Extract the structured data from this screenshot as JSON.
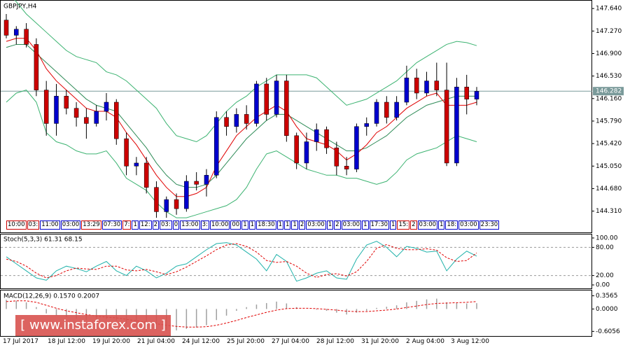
{
  "chart_data": {
    "type": "candlestick",
    "title": "GBPJPY,H4",
    "up_color": "#0000cd",
    "down_color": "#cc0000",
    "band_color": "#3cb371",
    "ma_color": "#e00000",
    "mid_color": "#2e8b57",
    "open": [
      147.45,
      147.2,
      147.3,
      147.05,
      146.3,
      145.75,
      146.2,
      146.0,
      145.85,
      145.75,
      145.95,
      146.1,
      145.5,
      145.05,
      145.1,
      144.7,
      144.3,
      144.5,
      144.35,
      144.8,
      144.75,
      144.9,
      145.85,
      145.7,
      145.9,
      145.75,
      146.4,
      145.9,
      146.45,
      145.55,
      145.1,
      145.45,
      145.65,
      145.35,
      145.05,
      145.0,
      145.7,
      145.75,
      146.1,
      145.85,
      146.1,
      146.5,
      146.25,
      146.45,
      146.3,
      145.1,
      146.35,
      146.15
    ],
    "high": [
      147.55,
      147.35,
      147.4,
      147.15,
      146.45,
      146.4,
      146.3,
      146.1,
      146.0,
      146.05,
      146.25,
      146.15,
      145.6,
      145.2,
      145.2,
      144.8,
      144.55,
      144.6,
      144.9,
      144.95,
      145.0,
      145.95,
      145.95,
      146.0,
      146.05,
      146.45,
      146.5,
      146.55,
      146.55,
      145.6,
      145.6,
      145.75,
      145.7,
      145.45,
      145.2,
      145.75,
      145.85,
      146.15,
      146.2,
      146.2,
      146.7,
      146.65,
      146.6,
      146.75,
      146.75,
      146.5,
      146.55,
      146.35
    ],
    "low": [
      147.15,
      147.05,
      147.0,
      146.2,
      145.55,
      145.55,
      145.9,
      145.7,
      145.5,
      145.7,
      145.8,
      145.4,
      144.9,
      144.9,
      144.6,
      144.2,
      144.2,
      144.25,
      144.3,
      144.65,
      144.55,
      144.85,
      145.55,
      145.6,
      145.65,
      145.7,
      145.8,
      145.85,
      145.45,
      145.0,
      145.0,
      145.3,
      145.25,
      144.9,
      144.9,
      144.95,
      145.55,
      145.7,
      145.75,
      145.8,
      146.05,
      146.15,
      146.2,
      146.2,
      145.05,
      145.05,
      145.9,
      146.05
    ],
    "close": [
      147.2,
      147.3,
      147.05,
      146.3,
      145.75,
      146.2,
      146.0,
      145.85,
      145.75,
      145.95,
      146.1,
      145.5,
      145.05,
      145.1,
      144.7,
      144.3,
      144.5,
      144.35,
      144.8,
      144.75,
      144.9,
      145.85,
      145.7,
      145.9,
      145.75,
      146.4,
      145.9,
      146.45,
      145.55,
      145.1,
      145.45,
      145.65,
      145.35,
      145.05,
      145.0,
      145.7,
      145.75,
      146.1,
      145.85,
      146.1,
      146.5,
      146.25,
      146.45,
      146.3,
      145.1,
      146.35,
      146.15,
      146.28
    ],
    "upper_band": [
      147.95,
      147.75,
      147.55,
      147.4,
      147.25,
      147.1,
      146.95,
      146.85,
      146.8,
      146.75,
      146.6,
      146.55,
      146.45,
      146.3,
      146.15,
      146.0,
      145.75,
      145.55,
      145.5,
      145.45,
      145.55,
      145.75,
      145.95,
      146.1,
      146.2,
      146.35,
      146.45,
      146.55,
      146.55,
      146.55,
      146.55,
      146.5,
      146.35,
      146.2,
      146.05,
      146.1,
      146.15,
      146.25,
      146.35,
      146.45,
      146.6,
      146.75,
      146.85,
      146.95,
      147.05,
      147.1,
      147.08,
      147.03
    ],
    "lower_band": [
      146.1,
      146.25,
      146.3,
      146.1,
      145.6,
      145.45,
      145.4,
      145.3,
      145.25,
      145.25,
      145.3,
      145.1,
      144.85,
      144.75,
      144.65,
      144.45,
      144.3,
      144.2,
      144.2,
      144.25,
      144.3,
      144.35,
      144.4,
      144.5,
      144.7,
      145.0,
      145.25,
      145.3,
      145.2,
      145.1,
      145.0,
      144.95,
      144.9,
      144.9,
      144.85,
      144.85,
      144.8,
      144.75,
      144.8,
      144.95,
      145.15,
      145.25,
      145.3,
      145.35,
      145.45,
      145.55,
      145.5,
      145.45
    ],
    "middle_band": [
      147.0,
      147.05,
      147.05,
      146.9,
      146.75,
      146.6,
      146.45,
      146.3,
      146.15,
      146.05,
      146.0,
      145.95,
      145.75,
      145.55,
      145.35,
      145.1,
      144.9,
      144.75,
      144.7,
      144.7,
      144.75,
      144.9,
      145.1,
      145.3,
      145.5,
      145.65,
      145.8,
      145.9,
      145.9,
      145.8,
      145.7,
      145.6,
      145.5,
      145.4,
      145.3,
      145.3,
      145.35,
      145.45,
      145.55,
      145.7,
      145.85,
      145.95,
      146.05,
      146.1,
      146.15,
      146.2,
      146.2,
      146.2
    ],
    "moving_average": [
      147.1,
      147.15,
      147.15,
      146.95,
      146.65,
      146.45,
      146.3,
      146.15,
      146.0,
      145.95,
      145.95,
      145.85,
      145.6,
      145.4,
      145.15,
      144.9,
      144.7,
      144.55,
      144.55,
      144.6,
      144.7,
      145.05,
      145.3,
      145.55,
      145.7,
      145.85,
      145.95,
      146.05,
      145.95,
      145.7,
      145.5,
      145.45,
      145.4,
      145.3,
      145.15,
      145.25,
      145.4,
      145.6,
      145.7,
      145.85,
      146.0,
      146.1,
      146.2,
      146.25,
      146.05,
      146.05,
      146.05,
      146.1
    ],
    "ylim": [
      143.96,
      147.78
    ],
    "yticks": [
      {
        "value": 147.64,
        "label": "147.640"
      },
      {
        "value": 147.27,
        "label": "147.270"
      },
      {
        "value": 146.9,
        "label": "146.900"
      },
      {
        "value": 146.53,
        "label": "146.530"
      },
      {
        "value": 146.16,
        "label": "146.160"
      },
      {
        "value": 145.79,
        "label": "145.790"
      },
      {
        "value": 145.42,
        "label": "145.420"
      },
      {
        "value": 145.05,
        "label": "145.050"
      },
      {
        "value": 144.68,
        "label": "144.680"
      },
      {
        "value": 144.31,
        "label": "144.310"
      }
    ],
    "current_price": 146.282,
    "event_labels": [
      {
        "text": "10:00",
        "color": "#cc0000"
      },
      {
        "text": "03:",
        "color": "#cc0000"
      },
      {
        "text": "11:00",
        "color": "#0000cd"
      },
      {
        "text": "03:00",
        "color": "#0000cd"
      },
      {
        "text": "13:29",
        "color": "#cc0000"
      },
      {
        "text": "07:30",
        "color": "#0000cd"
      },
      {
        "text": "7:",
        "color": "#cc0000"
      },
      {
        "text": "1",
        "color": "#0000cd"
      },
      {
        "text": "12:",
        "color": "#0000cd"
      },
      {
        "text": "2",
        "color": "#0000cd"
      },
      {
        "text": "03:",
        "color": "#0000cd"
      },
      {
        "text": "0",
        "color": "#0000cd"
      },
      {
        "text": "13:00",
        "color": "#0000cd"
      },
      {
        "text": "3:",
        "color": "#0000cd"
      },
      {
        "text": "10:00",
        "color": "#0000cd"
      },
      {
        "text": "00",
        "color": "#0000cd"
      },
      {
        "text": "1",
        "color": "#0000cd"
      },
      {
        "text": "1",
        "color": "#0000cd"
      },
      {
        "text": "18:30",
        "color": "#0000cd"
      },
      {
        "text": "1",
        "color": "#0000cd"
      },
      {
        "text": "1",
        "color": "#0000cd"
      },
      {
        "text": "1",
        "color": "#0000cd"
      },
      {
        "text": "2",
        "color": "#0000cd"
      },
      {
        "text": "03:00",
        "color": "#0000cd"
      },
      {
        "text": "1",
        "color": "#0000cd"
      },
      {
        "text": "2",
        "color": "#0000cd"
      },
      {
        "text": "03:00",
        "color": "#0000cd"
      },
      {
        "text": "1",
        "color": "#0000cd"
      },
      {
        "text": "17:30",
        "color": "#0000cd"
      },
      {
        "text": "1",
        "color": "#0000cd"
      },
      {
        "text": "15:",
        "color": "#cc0000"
      },
      {
        "text": "2",
        "color": "#cc0000"
      },
      {
        "text": "03:00",
        "color": "#0000cd"
      },
      {
        "text": "1",
        "color": "#0000cd"
      },
      {
        "text": "18:",
        "color": "#0000cd"
      },
      {
        "text": "03:00",
        "color": "#0000cd"
      },
      {
        "text": "23:30",
        "color": "#0000cd"
      }
    ],
    "x_labels": [
      "17 Jul 2017",
      "18 Jul 12:00",
      "19 Jul 20:00",
      "21 Jul 04:00",
      "24 Jul 12:00",
      "25 Jul 20:00",
      "27 Jul 04:00",
      "28 Jul 12:00",
      "31 Jul 20:00",
      "2 Aug 04:00",
      "3 Aug 12:00"
    ],
    "watermark": "[ www.instaforex.com ]",
    "stoch": {
      "label": "Stoch(5,3,3) 61.31 68.15",
      "ylim": [
        -7.4,
        107.4
      ],
      "yticks": [
        {
          "value": 100,
          "label": "100.00"
        },
        {
          "value": 80,
          "label": "80.00"
        },
        {
          "value": 20,
          "label": "20.00"
        },
        {
          "value": 0,
          "label": "0.00"
        }
      ],
      "levels": [
        80,
        20
      ],
      "main": {
        "color": "#20b2aa",
        "values": [
          60,
          45,
          30,
          15,
          10,
          30,
          40,
          35,
          28,
          40,
          50,
          30,
          20,
          40,
          30,
          15,
          25,
          40,
          45,
          60,
          75,
          88,
          90,
          85,
          70,
          55,
          30,
          65,
          50,
          8,
          15,
          25,
          30,
          15,
          12,
          55,
          85,
          93,
          80,
          60,
          82,
          78,
          70,
          72,
          30,
          55,
          72,
          61.31
        ]
      },
      "signal": {
        "color": "#e00000",
        "values": [
          55,
          50,
          40,
          25,
          15,
          20,
          30,
          36,
          34,
          33,
          40,
          40,
          32,
          30,
          33,
          28,
          22,
          28,
          38,
          50,
          62,
          75,
          85,
          88,
          82,
          70,
          52,
          48,
          50,
          40,
          25,
          16,
          22,
          24,
          19,
          28,
          50,
          78,
          86,
          78,
          75,
          75,
          77,
          74,
          58,
          50,
          52,
          68.15
        ]
      }
    },
    "macd": {
      "label": "MACD(12,26,9) 0.1570 0.2007",
      "ylim": [
        -0.75,
        0.5
      ],
      "yticks": [
        0.3565,
        {
          "value": 0,
          "label": "0.0000"
        },
        -0.6056
      ],
      "histogram": {
        "color": "#a0a0a0",
        "values": [
          0.25,
          0.22,
          0.18,
          0.05,
          -0.12,
          -0.18,
          -0.22,
          -0.26,
          -0.3,
          -0.3,
          -0.28,
          -0.32,
          -0.4,
          -0.44,
          -0.5,
          -0.56,
          -0.58,
          -0.58,
          -0.54,
          -0.5,
          -0.44,
          -0.3,
          -0.18,
          -0.05,
          0.05,
          0.12,
          0.16,
          0.2,
          0.15,
          0.05,
          0,
          -0.02,
          -0.05,
          -0.1,
          -0.15,
          -0.1,
          -0.05,
          0.03,
          0.06,
          0.1,
          0.18,
          0.22,
          0.26,
          0.28,
          0.18,
          0.16,
          0.15,
          0.157
        ]
      },
      "signal": {
        "color": "#e00000",
        "values": [
          0.2,
          0.22,
          0.22,
          0.18,
          0.1,
          0.02,
          -0.05,
          -0.1,
          -0.15,
          -0.19,
          -0.22,
          -0.24,
          -0.28,
          -0.32,
          -0.36,
          -0.4,
          -0.44,
          -0.47,
          -0.49,
          -0.49,
          -0.48,
          -0.44,
          -0.38,
          -0.31,
          -0.23,
          -0.16,
          -0.09,
          -0.03,
          0.01,
          0.02,
          0.02,
          0.01,
          -0.01,
          -0.03,
          -0.06,
          -0.07,
          -0.07,
          -0.05,
          -0.03,
          0,
          0.04,
          0.08,
          0.12,
          0.15,
          0.16,
          0.17,
          0.18,
          0.2007
        ]
      }
    }
  }
}
